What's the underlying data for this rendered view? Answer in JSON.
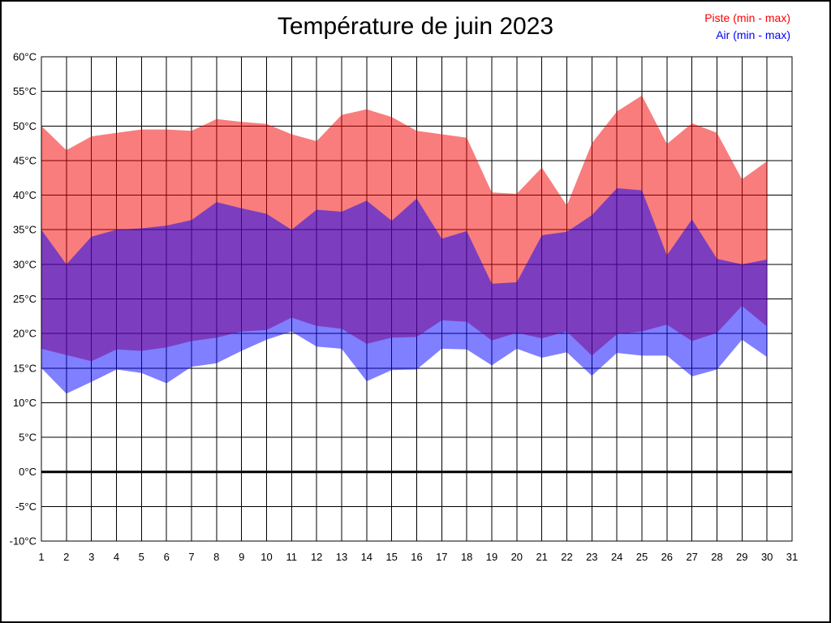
{
  "page": {
    "background": "#ffffff",
    "border_color": "#000000"
  },
  "chart_data": {
    "type": "area",
    "title": "Température de juin 2023",
    "xlabel": "",
    "ylabel": "",
    "xlim": [
      1,
      31
    ],
    "ylim": [
      -10,
      60
    ],
    "y_step": 5,
    "grid": true,
    "grid_color": "#000000",
    "zero_line_value": 0,
    "zero_line_width": 3,
    "legend_position": "top-right",
    "x": [
      1,
      2,
      3,
      4,
      5,
      6,
      7,
      8,
      9,
      10,
      11,
      12,
      13,
      14,
      15,
      16,
      17,
      18,
      19,
      20,
      21,
      22,
      23,
      24,
      25,
      26,
      27,
      28,
      29,
      30
    ],
    "x_ticks": [
      "1",
      "2",
      "3",
      "4",
      "5",
      "6",
      "7",
      "8",
      "9",
      "10",
      "11",
      "12",
      "13",
      "14",
      "15",
      "16",
      "17",
      "18",
      "19",
      "20",
      "21",
      "22",
      "23",
      "24",
      "25",
      "26",
      "27",
      "28",
      "29",
      "30",
      "31"
    ],
    "y_tick_values": [
      60,
      55,
      50,
      45,
      40,
      35,
      30,
      25,
      20,
      15,
      10,
      5,
      0,
      -5,
      -10
    ],
    "y_tick_labels": [
      "60°C",
      "55°C",
      "50°C",
      "45°C",
      "40°C",
      "35°C",
      "30°C",
      "25°C",
      "20°C",
      "15°C",
      "10°C",
      "5°C",
      "0°C",
      "-5°C",
      "-10°C"
    ],
    "series": [
      {
        "name": "Piste (min - max)",
        "legend_color": "#ff0000",
        "fill": "rgba(243,0,0,0.51)",
        "max": [
          50,
          46.5,
          48.5,
          49,
          49.5,
          49.5,
          49.3,
          51,
          50.6,
          50.3,
          48.8,
          47.8,
          51.6,
          52.4,
          51.3,
          49.3,
          48.8,
          48.3,
          40.4,
          40.2,
          44,
          38.5,
          47.5,
          52.1,
          54.4,
          47.4,
          50.4,
          49,
          42.3,
          44.9
        ],
        "min": [
          17.8,
          16.9,
          16,
          17.7,
          17.5,
          18,
          18.9,
          19.4,
          20.3,
          20.5,
          22.3,
          21.1,
          20.7,
          18.5,
          19.4,
          19.5,
          21.9,
          21.7,
          19,
          20.1,
          19.3,
          20.3,
          16.8,
          19.9,
          20.3,
          21.3,
          18.9,
          20.1,
          24,
          21
        ]
      },
      {
        "name": "Air (min - max)",
        "legend_color": "#0000ff",
        "fill": "rgba(0,0,255,0.5)",
        "max": [
          35,
          30,
          34,
          35,
          35.2,
          35.6,
          36.4,
          39,
          38.1,
          37.3,
          35,
          37.9,
          37.6,
          39.2,
          36.3,
          39.5,
          33.7,
          34.8,
          27.2,
          27.4,
          34.2,
          34.7,
          37.1,
          41,
          40.7,
          31.3,
          36.5,
          30.8,
          30,
          30.7
        ],
        "min": [
          15,
          11.3,
          13,
          14.8,
          14.3,
          12.8,
          15.2,
          15.7,
          17.5,
          19.1,
          20.3,
          18.1,
          17.8,
          13.1,
          14.7,
          14.8,
          17.8,
          17.7,
          15.4,
          17.8,
          16.5,
          17.3,
          13.9,
          17.2,
          16.8,
          16.8,
          13.8,
          14.8,
          19.1,
          16.6
        ]
      }
    ]
  }
}
